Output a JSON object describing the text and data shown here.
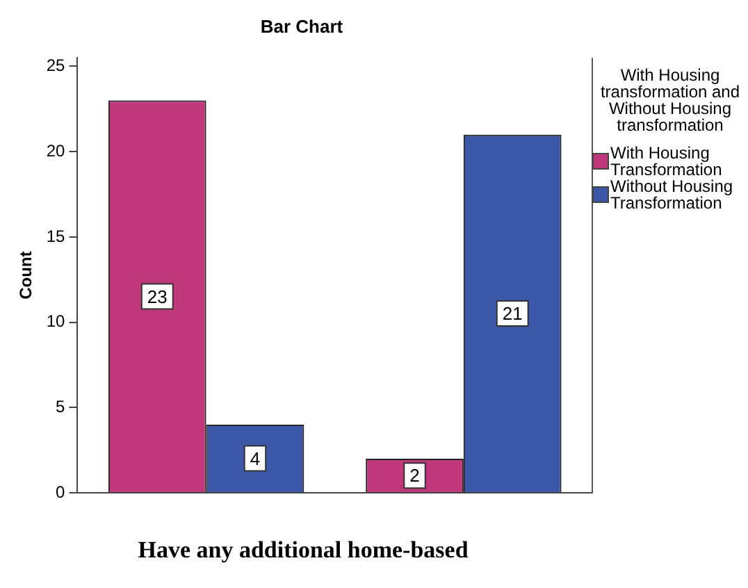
{
  "chart_data": {
    "type": "bar",
    "title": "Bar Chart",
    "xlabel": "Have any additional home-based",
    "ylabel": "Count",
    "legend_title": "With Housing transformation and Without Housing transformation",
    "categories": [
      null,
      null
    ],
    "series": [
      {
        "name": "With Housing Transformation",
        "color": "#c0387a",
        "values": [
          23,
          2
        ]
      },
      {
        "name": "Without Housing Transformation",
        "color": "#3d57a8",
        "values": [
          4,
          21
        ]
      }
    ],
    "ylim": [
      0,
      25.5
    ],
    "yticks": [
      0,
      5,
      10,
      15,
      20,
      25
    ],
    "grid": false,
    "legend": "right",
    "data_labels": true
  }
}
